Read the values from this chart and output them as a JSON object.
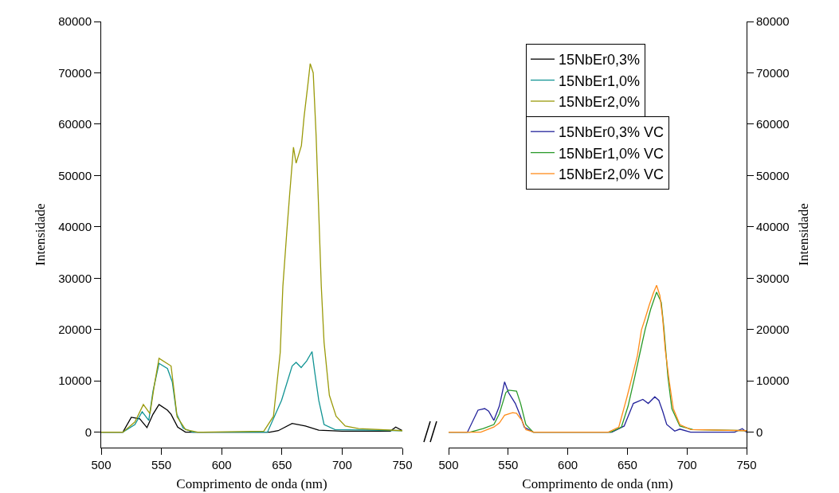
{
  "chart_data": [
    {
      "type": "line",
      "xlabel": "Comprimento de onda (nm)",
      "ylabel": "Intensidade",
      "xlim": [
        500,
        750
      ],
      "xticks": [
        500,
        550,
        600,
        650,
        700,
        750
      ],
      "ylim": [
        -3000,
        80000
      ],
      "yticks": [
        0,
        10000,
        20000,
        30000,
        40000,
        50000,
        60000,
        70000,
        80000
      ],
      "grid": false,
      "legend": "top right",
      "marker": "none",
      "line_style": "solid",
      "series": [
        {
          "name": "15NbEr0,3%",
          "color": "#000000",
          "x": [
            500,
            518,
            525,
            532,
            538,
            543,
            548,
            555,
            558,
            563.5,
            570,
            600,
            640,
            647,
            658.5,
            669.5,
            680.6,
            700,
            740,
            744.5,
            750
          ],
          "values": [
            0,
            0,
            2900,
            2600,
            900,
            3500,
            5400,
            4300,
            3500,
            1000,
            0,
            0,
            0,
            300,
            1700,
            1200,
            400,
            200,
            200,
            1000,
            300
          ]
        },
        {
          "name": "15NbEr1,0%",
          "color": "#129494",
          "x": [
            500,
            518,
            528,
            534,
            539.5,
            543,
            548,
            555,
            559,
            562.6,
            568,
            576,
            638,
            649.7,
            658.5,
            661.8,
            666,
            670.6,
            675,
            677.2,
            680.6,
            685,
            694,
            750
          ],
          "values": [
            0,
            0,
            1500,
            4000,
            2300,
            8000,
            13400,
            12400,
            9800,
            3600,
            800,
            0,
            0,
            6200,
            12900,
            13600,
            12600,
            13900,
            15700,
            11800,
            6200,
            1500,
            500,
            300
          ]
        },
        {
          "name": "15NbEr2,0%",
          "color": "#9a9a0a",
          "x": [
            500,
            518,
            528,
            535,
            540.5,
            544,
            548,
            558,
            560,
            563,
            570,
            580,
            635,
            643,
            648.6,
            650.8,
            654,
            656.3,
            659.6,
            661.8,
            666.2,
            668.4,
            671.8,
            673.5,
            676,
            678.4,
            680.6,
            682.7,
            685,
            689.4,
            695,
            702.6,
            713.6,
            750
          ],
          "values": [
            0,
            0,
            2000,
            5400,
            3600,
            9000,
            14400,
            12900,
            9000,
            3000,
            500,
            0,
            200,
            3100,
            15500,
            28400,
            38800,
            45900,
            55500,
            52400,
            55800,
            61400,
            68200,
            71800,
            70000,
            57800,
            42800,
            28400,
            17500,
            7200,
            3100,
            1200,
            700,
            300
          ]
        }
      ]
    },
    {
      "type": "line",
      "xlabel": "Comprimento de onda (nm)",
      "ylabel": "Intensidade",
      "xlim": [
        500,
        750
      ],
      "xticks": [
        500,
        550,
        600,
        650,
        700,
        750
      ],
      "ylim": [
        -3000,
        80000
      ],
      "yticks": [
        0,
        10000,
        20000,
        30000,
        40000,
        50000,
        60000,
        70000,
        80000
      ],
      "grid": false,
      "legend": "top right",
      "marker": "none",
      "line_style": "solid",
      "series": [
        {
          "name": "15NbEr0,3% VC",
          "color": "#23239b",
          "x": [
            500,
            515.8,
            524.7,
            530.3,
            533.6,
            538,
            542.6,
            547,
            550.3,
            556,
            560.4,
            563.5,
            571,
            637,
            647.3,
            655,
            663,
            667.5,
            673,
            676.4,
            679.6,
            683,
            689.7,
            694,
            703,
            740,
            746.4,
            750
          ],
          "values": [
            0,
            0,
            4300,
            4600,
            4100,
            2300,
            5100,
            9800,
            7700,
            5600,
            3100,
            1000,
            0,
            0,
            1200,
            5600,
            6400,
            5600,
            6900,
            6200,
            4100,
            1500,
            200,
            600,
            0,
            0,
            700,
            0
          ]
        },
        {
          "name": "15NbEr1,0% VC",
          "color": "#2a9a2a",
          "x": [
            500,
            518,
            529,
            538,
            542.6,
            548,
            550.3,
            557,
            560.4,
            564.8,
            571,
            636,
            645,
            650.6,
            656.2,
            660.6,
            665,
            669.6,
            674.5,
            678.4,
            680.7,
            684,
            687.3,
            694,
            705,
            750
          ],
          "values": [
            0,
            0,
            700,
            1500,
            3600,
            7700,
            8200,
            8000,
            5600,
            1500,
            0,
            0,
            1000,
            5100,
            10800,
            15500,
            20100,
            24000,
            27300,
            25300,
            20100,
            10800,
            4600,
            1200,
            500,
            300
          ]
        },
        {
          "name": "15NbEr2,0% VC",
          "color": "#ff8c1a",
          "x": [
            500,
            527,
            538,
            542.6,
            547,
            553.7,
            557,
            561.5,
            564.8,
            571.5,
            634,
            642.8,
            649.5,
            652.9,
            658.4,
            661.8,
            665,
            668.4,
            671.8,
            674.5,
            677.3,
            679.6,
            681.8,
            685.2,
            688.5,
            694,
            703,
            750
          ],
          "values": [
            0,
            0,
            1000,
            1800,
            3300,
            3800,
            3700,
            2300,
            500,
            0,
            0,
            1000,
            6700,
            9800,
            14900,
            19900,
            22200,
            24800,
            27100,
            28600,
            26600,
            22200,
            16000,
            9800,
            4600,
            1500,
            500,
            300
          ]
        }
      ]
    }
  ]
}
